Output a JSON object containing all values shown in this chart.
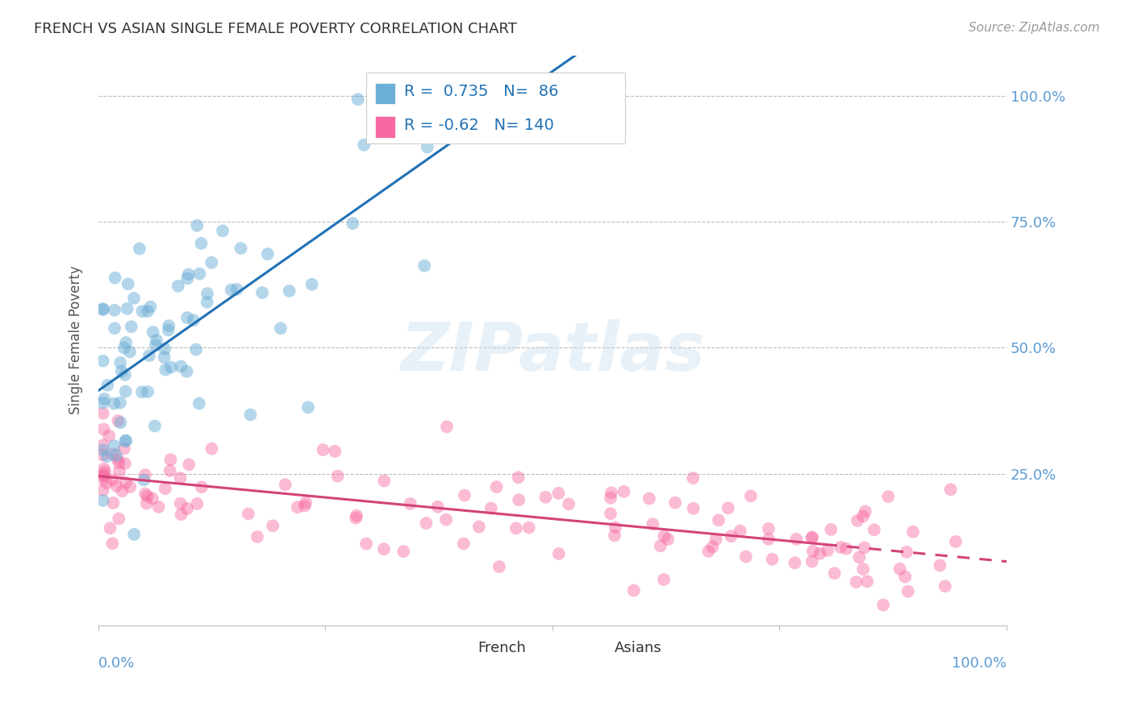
{
  "title": "FRENCH VS ASIAN SINGLE FEMALE POVERTY CORRELATION CHART",
  "source": "Source: ZipAtlas.com",
  "ylabel": "Single Female Poverty",
  "french_R": 0.735,
  "french_N": 86,
  "asian_R": -0.62,
  "asian_N": 140,
  "french_color": "#6baed6",
  "asian_color": "#f768a1",
  "french_line_color": "#2171b5",
  "asian_line_color": "#d4437a",
  "watermark": "ZIPatlas",
  "background_color": "#ffffff",
  "grid_color": "#bbbbbb",
  "title_color": "#333333",
  "axis_label_color": "#5b9bd5",
  "legend_label_color": "#2171b5",
  "xlim": [
    0.0,
    1.0
  ],
  "ylim": [
    -0.05,
    1.08
  ],
  "ytick_labels": [
    "25.0%",
    "50.0%",
    "75.0%",
    "100.0%"
  ],
  "ytick_values": [
    0.25,
    0.5,
    0.75,
    1.0
  ],
  "xtick_values": [
    0.0,
    0.25,
    0.5,
    0.75,
    1.0
  ]
}
